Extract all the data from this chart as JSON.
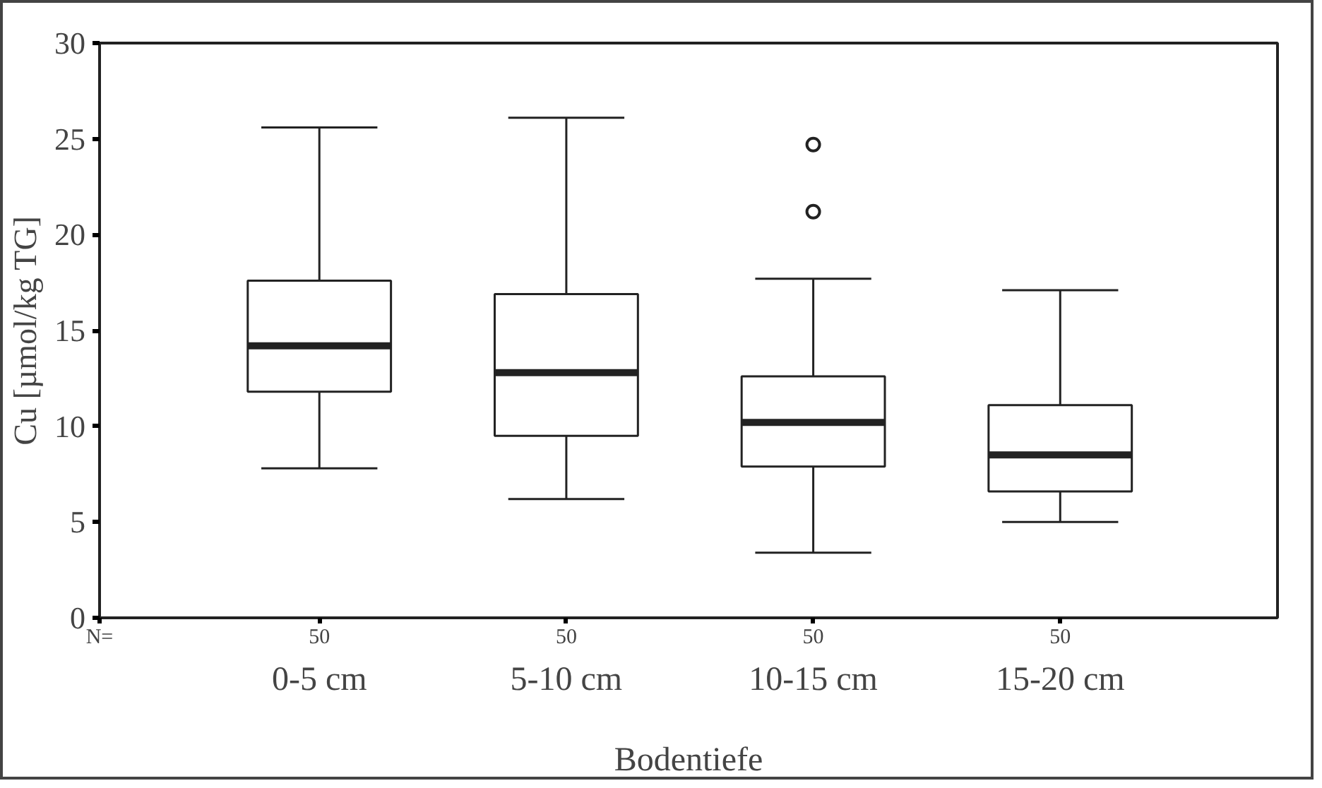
{
  "chart_data": {
    "type": "box",
    "ylabel": "Cu [µmol/kg TG]",
    "xlabel": "Bodentiefe",
    "categories": [
      "0-5 cm",
      "5-10 cm",
      "10-15 cm",
      "15-20 cm"
    ],
    "boxes": [
      {
        "low": 7.8,
        "q1": 11.8,
        "median": 14.2,
        "q3": 17.6,
        "high": 25.6
      },
      {
        "low": 6.2,
        "q1": 9.5,
        "median": 12.8,
        "q3": 16.9,
        "high": 26.1
      },
      {
        "low": 3.4,
        "q1": 7.9,
        "median": 10.2,
        "q3": 12.6,
        "high": 17.7,
        "outliers": [
          24.7,
          21.2
        ]
      },
      {
        "low": 5.0,
        "q1": 6.6,
        "median": 8.5,
        "q3": 11.1,
        "high": 17.1
      }
    ],
    "ylim": [
      0,
      30
    ],
    "yticks": [
      0,
      5,
      10,
      15,
      20,
      25,
      30
    ],
    "grid": false,
    "annotations": [
      "N=",
      "50",
      "50",
      "50",
      "50"
    ]
  }
}
